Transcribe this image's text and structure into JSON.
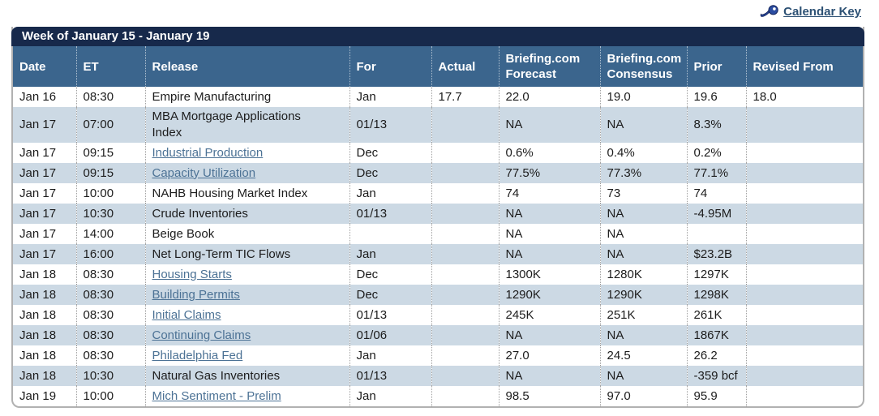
{
  "calendar_key": {
    "label": "Calendar Key"
  },
  "colors": {
    "title_bar": "#17294b",
    "header_row": "#3b658d",
    "alt_row": "#ccd9e4",
    "link": "#4c7295",
    "calendar_key_link": "#2d5174"
  },
  "table": {
    "title": "Week of January 15 - January 19",
    "columns": [
      "Date",
      "ET",
      "Release",
      "For",
      "Actual",
      "Briefing.com Forecast",
      "Briefing.com Consensus",
      "Prior",
      "Revised From"
    ],
    "rows": [
      {
        "date": "Jan 16",
        "et": "08:30",
        "release": "Empire Manufacturing",
        "link": false,
        "for": "Jan",
        "actual": "17.7",
        "forecast": "22.0",
        "consensus": "19.0",
        "prior": "19.6",
        "revised": "18.0"
      },
      {
        "date": "Jan 17",
        "et": "07:00",
        "release": "MBA Mortgage Applications Index",
        "link": false,
        "for": "01/13",
        "actual": "",
        "forecast": "NA",
        "consensus": "NA",
        "prior": "8.3%",
        "revised": ""
      },
      {
        "date": "Jan 17",
        "et": "09:15",
        "release": "Industrial Production",
        "link": true,
        "for": "Dec",
        "actual": "",
        "forecast": "0.6%",
        "consensus": "0.4%",
        "prior": "0.2%",
        "revised": ""
      },
      {
        "date": "Jan 17",
        "et": "09:15",
        "release": "Capacity Utilization",
        "link": true,
        "for": "Dec",
        "actual": "",
        "forecast": "77.5%",
        "consensus": "77.3%",
        "prior": "77.1%",
        "revised": ""
      },
      {
        "date": "Jan 17",
        "et": "10:00",
        "release": "NAHB Housing Market Index",
        "link": false,
        "for": "Jan",
        "actual": "",
        "forecast": "74",
        "consensus": "73",
        "prior": "74",
        "revised": ""
      },
      {
        "date": "Jan 17",
        "et": "10:30",
        "release": "Crude Inventories",
        "link": false,
        "for": "01/13",
        "actual": "",
        "forecast": "NA",
        "consensus": "NA",
        "prior": "-4.95M",
        "revised": ""
      },
      {
        "date": "Jan 17",
        "et": "14:00",
        "release": "Beige Book",
        "link": false,
        "for": "",
        "actual": "",
        "forecast": "NA",
        "consensus": "NA",
        "prior": "",
        "revised": ""
      },
      {
        "date": "Jan 17",
        "et": "16:00",
        "release": "Net Long-Term TIC Flows",
        "link": false,
        "for": "Jan",
        "actual": "",
        "forecast": "NA",
        "consensus": "NA",
        "prior": "$23.2B",
        "revised": ""
      },
      {
        "date": "Jan 18",
        "et": "08:30",
        "release": "Housing Starts",
        "link": true,
        "for": "Dec",
        "actual": "",
        "forecast": "1300K",
        "consensus": "1280K",
        "prior": "1297K",
        "revised": ""
      },
      {
        "date": "Jan 18",
        "et": "08:30",
        "release": "Building Permits",
        "link": true,
        "for": "Dec",
        "actual": "",
        "forecast": "1290K",
        "consensus": "1290K",
        "prior": "1298K",
        "revised": ""
      },
      {
        "date": "Jan 18",
        "et": "08:30",
        "release": "Initial Claims",
        "link": true,
        "for": "01/13",
        "actual": "",
        "forecast": "245K",
        "consensus": "251K",
        "prior": "261K",
        "revised": ""
      },
      {
        "date": "Jan 18",
        "et": "08:30",
        "release": "Continuing Claims",
        "link": true,
        "for": "01/06",
        "actual": "",
        "forecast": "NA",
        "consensus": "NA",
        "prior": "1867K",
        "revised": ""
      },
      {
        "date": "Jan 18",
        "et": "08:30",
        "release": "Philadelphia Fed",
        "link": true,
        "for": "Jan",
        "actual": "",
        "forecast": "27.0",
        "consensus": "24.5",
        "prior": "26.2",
        "revised": ""
      },
      {
        "date": "Jan 18",
        "et": "10:30",
        "release": "Natural Gas Inventories",
        "link": false,
        "for": "01/13",
        "actual": "",
        "forecast": "NA",
        "consensus": "NA",
        "prior": "-359 bcf",
        "revised": ""
      },
      {
        "date": "Jan 19",
        "et": "10:00",
        "release": "Mich Sentiment - Prelim",
        "link": true,
        "for": "Jan",
        "actual": "",
        "forecast": "98.5",
        "consensus": "97.0",
        "prior": "95.9",
        "revised": ""
      }
    ]
  }
}
